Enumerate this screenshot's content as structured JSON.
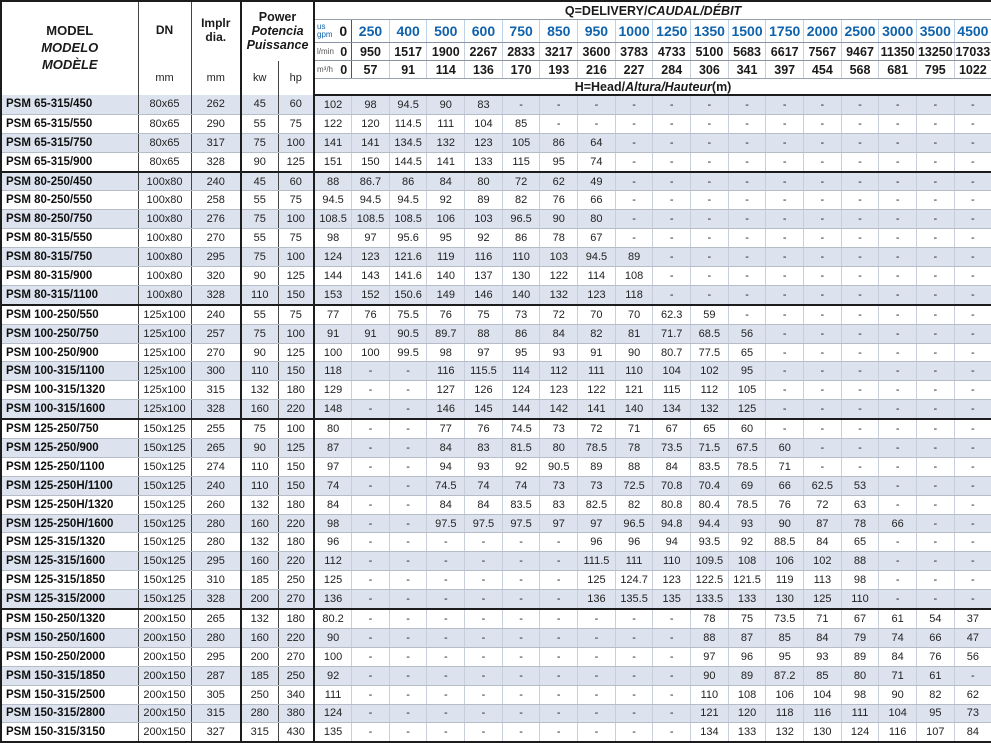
{
  "colors": {
    "accent_blue": "#0f62ac",
    "stripe": "#dce3ee",
    "grid_light": "#c9cfda",
    "grid_dark": "#1c1c1c"
  },
  "header": {
    "model_lines": [
      "MODEL",
      "MODELO",
      "MODÈLE"
    ],
    "dn_label": "DN",
    "impeller_label_1": "Implr",
    "impeller_label_2": "dia.",
    "power_lines": [
      "Power",
      "Potencia",
      "Puissance"
    ],
    "unit_mm": "mm",
    "unit_kw": "kw",
    "unit_hp": "hp",
    "q_title_plain": "Q=DELIVERY/",
    "q_title_italic": "CAUDAL/DÉBIT",
    "h_title_plain": "H=Head/",
    "h_title_italic": "Altura/Hauteur",
    "h_title_suffix": "(m)",
    "gpm_unit_top": "us",
    "gpm_unit_bottom": "gpm",
    "lmin_unit": "l/min",
    "m3h_unit": "m³/h"
  },
  "flow": {
    "gpm": [
      "0",
      "250",
      "400",
      "500",
      "600",
      "750",
      "850",
      "950",
      "1000",
      "1250",
      "1350",
      "1500",
      "1750",
      "2000",
      "2500",
      "3000",
      "3500",
      "4500"
    ],
    "lmin": [
      "0",
      "950",
      "1517",
      "1900",
      "2267",
      "2833",
      "3217",
      "3600",
      "3783",
      "4733",
      "5100",
      "5683",
      "6617",
      "7567",
      "9467",
      "11350",
      "13250",
      "17033"
    ],
    "m3h": [
      "0",
      "57",
      "91",
      "114",
      "136",
      "170",
      "193",
      "216",
      "227",
      "284",
      "306",
      "341",
      "397",
      "454",
      "568",
      "681",
      "795",
      "1022"
    ]
  },
  "rows": [
    {
      "model": "PSM 65-315/450",
      "dn": "80x65",
      "dia": "262",
      "kw": "45",
      "hp": "60",
      "h": [
        "102",
        "98",
        "94.5",
        "90",
        "83",
        "-",
        "-",
        "-",
        "-",
        "-",
        "-",
        "-",
        "-",
        "-",
        "-",
        "-",
        "-",
        "-"
      ]
    },
    {
      "model": "PSM 65-315/550",
      "dn": "80x65",
      "dia": "290",
      "kw": "55",
      "hp": "75",
      "h": [
        "122",
        "120",
        "114.5",
        "111",
        "104",
        "85",
        "-",
        "-",
        "-",
        "-",
        "-",
        "-",
        "-",
        "-",
        "-",
        "-",
        "-",
        "-"
      ]
    },
    {
      "model": "PSM 65-315/750",
      "dn": "80x65",
      "dia": "317",
      "kw": "75",
      "hp": "100",
      "h": [
        "141",
        "141",
        "134.5",
        "132",
        "123",
        "105",
        "86",
        "64",
        "-",
        "-",
        "-",
        "-",
        "-",
        "-",
        "-",
        "-",
        "-",
        "-"
      ]
    },
    {
      "model": "PSM 65-315/900",
      "dn": "80x65",
      "dia": "328",
      "kw": "90",
      "hp": "125",
      "h": [
        "151",
        "150",
        "144.5",
        "141",
        "133",
        "115",
        "95",
        "74",
        "-",
        "-",
        "-",
        "-",
        "-",
        "-",
        "-",
        "-",
        "-",
        "-"
      ]
    },
    {
      "model": "PSM 80-250/450",
      "dn": "100x80",
      "dia": "240",
      "kw": "45",
      "hp": "60",
      "group_start": true,
      "h": [
        "88",
        "86.7",
        "86",
        "84",
        "80",
        "72",
        "62",
        "49",
        "-",
        "-",
        "-",
        "-",
        "-",
        "-",
        "-",
        "-",
        "-",
        "-"
      ]
    },
    {
      "model": "PSM 80-250/550",
      "dn": "100x80",
      "dia": "258",
      "kw": "55",
      "hp": "75",
      "h": [
        "94.5",
        "94.5",
        "94.5",
        "92",
        "89",
        "82",
        "76",
        "66",
        "-",
        "-",
        "-",
        "-",
        "-",
        "-",
        "-",
        "-",
        "-",
        "-"
      ]
    },
    {
      "model": "PSM 80-250/750",
      "dn": "100x80",
      "dia": "276",
      "kw": "75",
      "hp": "100",
      "h": [
        "108.5",
        "108.5",
        "108.5",
        "106",
        "103",
        "96.5",
        "90",
        "80",
        "-",
        "-",
        "-",
        "-",
        "-",
        "-",
        "-",
        "-",
        "-",
        "-"
      ]
    },
    {
      "model": "PSM 80-315/550",
      "dn": "100x80",
      "dia": "270",
      "kw": "55",
      "hp": "75",
      "h": [
        "98",
        "97",
        "95.6",
        "95",
        "92",
        "86",
        "78",
        "67",
        "-",
        "-",
        "-",
        "-",
        "-",
        "-",
        "-",
        "-",
        "-",
        "-"
      ]
    },
    {
      "model": "PSM 80-315/750",
      "dn": "100x80",
      "dia": "295",
      "kw": "75",
      "hp": "100",
      "h": [
        "124",
        "123",
        "121.6",
        "119",
        "116",
        "110",
        "103",
        "94.5",
        "89",
        "-",
        "-",
        "-",
        "-",
        "-",
        "-",
        "-",
        "-",
        "-"
      ]
    },
    {
      "model": "PSM 80-315/900",
      "dn": "100x80",
      "dia": "320",
      "kw": "90",
      "hp": "125",
      "h": [
        "144",
        "143",
        "141.6",
        "140",
        "137",
        "130",
        "122",
        "114",
        "108",
        "-",
        "-",
        "-",
        "-",
        "-",
        "-",
        "-",
        "-",
        "-"
      ]
    },
    {
      "model": "PSM 80-315/1100",
      "dn": "100x80",
      "dia": "328",
      "kw": "110",
      "hp": "150",
      "h": [
        "153",
        "152",
        "150.6",
        "149",
        "146",
        "140",
        "132",
        "123",
        "118",
        "-",
        "-",
        "-",
        "-",
        "-",
        "-",
        "-",
        "-",
        "-"
      ]
    },
    {
      "model": "PSM 100-250/550",
      "dn": "125x100",
      "dia": "240",
      "kw": "55",
      "hp": "75",
      "group_start": true,
      "h": [
        "77",
        "76",
        "75.5",
        "76",
        "75",
        "73",
        "72",
        "70",
        "70",
        "62.3",
        "59",
        "-",
        "-",
        "-",
        "-",
        "-",
        "-",
        "-"
      ]
    },
    {
      "model": "PSM 100-250/750",
      "dn": "125x100",
      "dia": "257",
      "kw": "75",
      "hp": "100",
      "h": [
        "91",
        "91",
        "90.5",
        "89.7",
        "88",
        "86",
        "84",
        "82",
        "81",
        "71.7",
        "68.5",
        "56",
        "-",
        "-",
        "-",
        "-",
        "-",
        "-"
      ]
    },
    {
      "model": "PSM 100-250/900",
      "dn": "125x100",
      "dia": "270",
      "kw": "90",
      "hp": "125",
      "h": [
        "100",
        "100",
        "99.5",
        "98",
        "97",
        "95",
        "93",
        "91",
        "90",
        "80.7",
        "77.5",
        "65",
        "-",
        "-",
        "-",
        "-",
        "-",
        "-"
      ]
    },
    {
      "model": "PSM 100-315/1100",
      "dn": "125x100",
      "dia": "300",
      "kw": "110",
      "hp": "150",
      "h": [
        "118",
        "-",
        "-",
        "116",
        "115.5",
        "114",
        "112",
        "111",
        "110",
        "104",
        "102",
        "95",
        "-",
        "-",
        "-",
        "-",
        "-",
        "-"
      ]
    },
    {
      "model": "PSM 100-315/1320",
      "dn": "125x100",
      "dia": "315",
      "kw": "132",
      "hp": "180",
      "h": [
        "129",
        "-",
        "-",
        "127",
        "126",
        "124",
        "123",
        "122",
        "121",
        "115",
        "112",
        "105",
        "-",
        "-",
        "-",
        "-",
        "-",
        "-"
      ]
    },
    {
      "model": "PSM 100-315/1600",
      "dn": "125x100",
      "dia": "328",
      "kw": "160",
      "hp": "220",
      "h": [
        "148",
        "-",
        "-",
        "146",
        "145",
        "144",
        "142",
        "141",
        "140",
        "134",
        "132",
        "125",
        "-",
        "-",
        "-",
        "-",
        "-",
        "-"
      ]
    },
    {
      "model": "PSM 125-250/750",
      "dn": "150x125",
      "dia": "255",
      "kw": "75",
      "hp": "100",
      "group_start": true,
      "h": [
        "80",
        "-",
        "-",
        "77",
        "76",
        "74.5",
        "73",
        "72",
        "71",
        "67",
        "65",
        "60",
        "-",
        "-",
        "-",
        "-",
        "-",
        "-"
      ]
    },
    {
      "model": "PSM 125-250/900",
      "dn": "150x125",
      "dia": "265",
      "kw": "90",
      "hp": "125",
      "h": [
        "87",
        "-",
        "-",
        "84",
        "83",
        "81.5",
        "80",
        "78.5",
        "78",
        "73.5",
        "71.5",
        "67.5",
        "60",
        "-",
        "-",
        "-",
        "-",
        "-"
      ]
    },
    {
      "model": "PSM 125-250/1100",
      "dn": "150x125",
      "dia": "274",
      "kw": "110",
      "hp": "150",
      "h": [
        "97",
        "-",
        "-",
        "94",
        "93",
        "92",
        "90.5",
        "89",
        "88",
        "84",
        "83.5",
        "78.5",
        "71",
        "-",
        "-",
        "-",
        "-",
        "-"
      ]
    },
    {
      "model": "PSM 125-250H/1100",
      "dn": "150x125",
      "dia": "240",
      "kw": "110",
      "hp": "150",
      "h": [
        "74",
        "-",
        "-",
        "74.5",
        "74",
        "74",
        "73",
        "73",
        "72.5",
        "70.8",
        "70.4",
        "69",
        "66",
        "62.5",
        "53",
        "-",
        "-",
        "-"
      ]
    },
    {
      "model": "PSM 125-250H/1320",
      "dn": "150x125",
      "dia": "260",
      "kw": "132",
      "hp": "180",
      "h": [
        "84",
        "-",
        "-",
        "84",
        "84",
        "83.5",
        "83",
        "82.5",
        "82",
        "80.8",
        "80.4",
        "78.5",
        "76",
        "72",
        "63",
        "-",
        "-",
        "-"
      ]
    },
    {
      "model": "PSM 125-250H/1600",
      "dn": "150x125",
      "dia": "280",
      "kw": "160",
      "hp": "220",
      "h": [
        "98",
        "-",
        "-",
        "97.5",
        "97.5",
        "97.5",
        "97",
        "97",
        "96.5",
        "94.8",
        "94.4",
        "93",
        "90",
        "87",
        "78",
        "66",
        "-",
        "-"
      ]
    },
    {
      "model": "PSM 125-315/1320",
      "dn": "150x125",
      "dia": "280",
      "kw": "132",
      "hp": "180",
      "h": [
        "96",
        "-",
        "-",
        "-",
        "-",
        "-",
        "-",
        "96",
        "96",
        "94",
        "93.5",
        "92",
        "88.5",
        "84",
        "65",
        "-",
        "-",
        "-"
      ]
    },
    {
      "model": "PSM 125-315/1600",
      "dn": "150x125",
      "dia": "295",
      "kw": "160",
      "hp": "220",
      "h": [
        "112",
        "-",
        "-",
        "-",
        "-",
        "-",
        "-",
        "111.5",
        "111",
        "110",
        "109.5",
        "108",
        "106",
        "102",
        "88",
        "-",
        "-",
        "-"
      ]
    },
    {
      "model": "PSM 125-315/1850",
      "dn": "150x125",
      "dia": "310",
      "kw": "185",
      "hp": "250",
      "h": [
        "125",
        "-",
        "-",
        "-",
        "-",
        "-",
        "-",
        "125",
        "124.7",
        "123",
        "122.5",
        "121.5",
        "119",
        "113",
        "98",
        "-",
        "-",
        "-"
      ]
    },
    {
      "model": "PSM 125-315/2000",
      "dn": "150x125",
      "dia": "328",
      "kw": "200",
      "hp": "270",
      "h": [
        "136",
        "-",
        "-",
        "-",
        "-",
        "-",
        "-",
        "136",
        "135.5",
        "135",
        "133.5",
        "133",
        "130",
        "125",
        "110",
        "-",
        "-",
        "-"
      ]
    },
    {
      "model": "PSM 150-250/1320",
      "dn": "200x150",
      "dia": "265",
      "kw": "132",
      "hp": "180",
      "group_start": true,
      "h": [
        "80.2",
        "-",
        "-",
        "-",
        "-",
        "-",
        "-",
        "-",
        "-",
        "-",
        "78",
        "75",
        "73.5",
        "71",
        "67",
        "61",
        "54",
        "37"
      ]
    },
    {
      "model": "PSM 150-250/1600",
      "dn": "200x150",
      "dia": "280",
      "kw": "160",
      "hp": "220",
      "h": [
        "90",
        "-",
        "-",
        "-",
        "-",
        "-",
        "-",
        "-",
        "-",
        "-",
        "88",
        "87",
        "85",
        "84",
        "79",
        "74",
        "66",
        "47"
      ]
    },
    {
      "model": "PSM 150-250/2000",
      "dn": "200x150",
      "dia": "295",
      "kw": "200",
      "hp": "270",
      "h": [
        "100",
        "-",
        "-",
        "-",
        "-",
        "-",
        "-",
        "-",
        "-",
        "-",
        "97",
        "96",
        "95",
        "93",
        "89",
        "84",
        "76",
        "56"
      ]
    },
    {
      "model": "PSM 150-315/1850",
      "dn": "200x150",
      "dia": "287",
      "kw": "185",
      "hp": "250",
      "h": [
        "92",
        "-",
        "-",
        "-",
        "-",
        "-",
        "-",
        "-",
        "-",
        "-",
        "90",
        "89",
        "87.2",
        "85",
        "80",
        "71",
        "61",
        "-"
      ]
    },
    {
      "model": "PSM 150-315/2500",
      "dn": "200x150",
      "dia": "305",
      "kw": "250",
      "hp": "340",
      "h": [
        "111",
        "-",
        "-",
        "-",
        "-",
        "-",
        "-",
        "-",
        "-",
        "-",
        "110",
        "108",
        "106",
        "104",
        "98",
        "90",
        "82",
        "62"
      ]
    },
    {
      "model": "PSM 150-315/2800",
      "dn": "200x150",
      "dia": "315",
      "kw": "280",
      "hp": "380",
      "h": [
        "124",
        "-",
        "-",
        "-",
        "-",
        "-",
        "-",
        "-",
        "-",
        "-",
        "121",
        "120",
        "118",
        "116",
        "111",
        "104",
        "95",
        "73"
      ]
    },
    {
      "model": "PSM 150-315/3150",
      "dn": "200x150",
      "dia": "327",
      "kw": "315",
      "hp": "430",
      "h": [
        "135",
        "-",
        "-",
        "-",
        "-",
        "-",
        "-",
        "-",
        "-",
        "-",
        "134",
        "133",
        "132",
        "130",
        "124",
        "116",
        "107",
        "84"
      ]
    }
  ]
}
